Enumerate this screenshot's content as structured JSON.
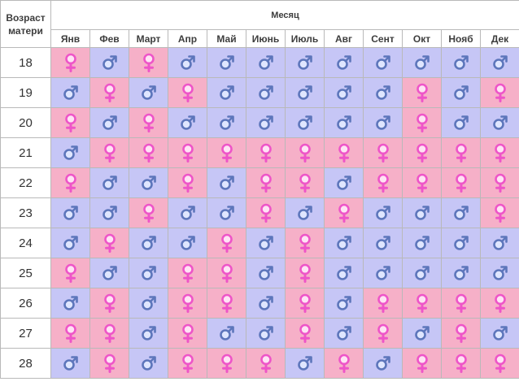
{
  "header": {
    "corner_label": "Возраст матери",
    "title": "Месяц"
  },
  "months": [
    "Янв",
    "Фев",
    "Март",
    "Апр",
    "Май",
    "Июнь",
    "Июль",
    "Авг",
    "Сент",
    "Окт",
    "Нояб",
    "Дек"
  ],
  "legend_icons": {
    "G": "female-symbol-icon",
    "B": "male-symbol-icon"
  },
  "colors": {
    "girl_cell": "#f6b0c8",
    "boy_cell": "#c6c6f6",
    "girl_icon": "#ee55c8",
    "boy_icon": "#5d76bb"
  },
  "rows": [
    {
      "age": "18",
      "cells": [
        "G",
        "B",
        "G",
        "B",
        "B",
        "B",
        "B",
        "B",
        "B",
        "B",
        "B",
        "B"
      ]
    },
    {
      "age": "19",
      "cells": [
        "B",
        "G",
        "B",
        "G",
        "B",
        "B",
        "B",
        "B",
        "B",
        "G",
        "B",
        "G"
      ]
    },
    {
      "age": "20",
      "cells": [
        "G",
        "B",
        "G",
        "B",
        "B",
        "B",
        "B",
        "B",
        "B",
        "G",
        "B",
        "B"
      ]
    },
    {
      "age": "21",
      "cells": [
        "B",
        "G",
        "G",
        "G",
        "G",
        "G",
        "G",
        "G",
        "G",
        "G",
        "G",
        "G"
      ]
    },
    {
      "age": "22",
      "cells": [
        "G",
        "B",
        "B",
        "G",
        "B",
        "G",
        "G",
        "B",
        "G",
        "G",
        "G",
        "G"
      ]
    },
    {
      "age": "23",
      "cells": [
        "B",
        "B",
        "G",
        "B",
        "B",
        "G",
        "B",
        "G",
        "B",
        "B",
        "B",
        "G"
      ]
    },
    {
      "age": "24",
      "cells": [
        "B",
        "G",
        "B",
        "B",
        "G",
        "B",
        "G",
        "B",
        "B",
        "B",
        "B",
        "B"
      ]
    },
    {
      "age": "25",
      "cells": [
        "G",
        "B",
        "B",
        "G",
        "G",
        "B",
        "G",
        "B",
        "B",
        "B",
        "B",
        "B"
      ]
    },
    {
      "age": "26",
      "cells": [
        "B",
        "G",
        "B",
        "G",
        "G",
        "B",
        "G",
        "B",
        "G",
        "G",
        "G",
        "G"
      ]
    },
    {
      "age": "27",
      "cells": [
        "G",
        "G",
        "B",
        "G",
        "B",
        "B",
        "G",
        "B",
        "G",
        "B",
        "G",
        "B"
      ]
    },
    {
      "age": "28",
      "cells": [
        "B",
        "G",
        "B",
        "G",
        "G",
        "G",
        "B",
        "G",
        "B",
        "G",
        "G",
        "G"
      ]
    }
  ]
}
